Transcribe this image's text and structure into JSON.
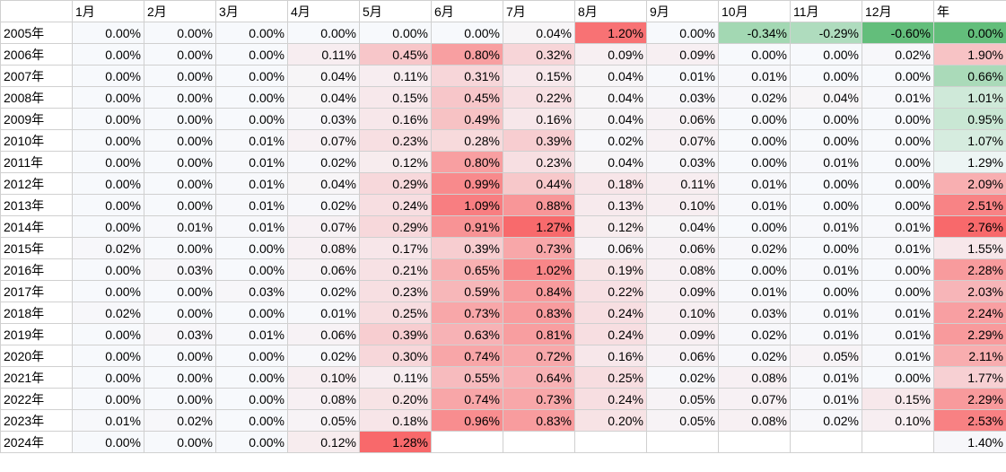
{
  "sheet": {
    "columns": [
      "1月",
      "2月",
      "3月",
      "4月",
      "5月",
      "6月",
      "7月",
      "8月",
      "9月",
      "10月",
      "11月",
      "12月",
      "年"
    ],
    "rows": [
      {
        "label": "2005年",
        "values": [
          "0.00%",
          "0.00%",
          "0.00%",
          "0.00%",
          "0.00%",
          "0.00%",
          "0.04%",
          "1.20%",
          "0.00%",
          "-0.34%",
          "-0.29%",
          "-0.60%",
          "0.00%"
        ]
      },
      {
        "label": "2006年",
        "values": [
          "0.00%",
          "0.00%",
          "0.00%",
          "0.11%",
          "0.45%",
          "0.80%",
          "0.32%",
          "0.09%",
          "0.09%",
          "0.00%",
          "0.00%",
          "0.02%",
          "1.90%"
        ]
      },
      {
        "label": "2007年",
        "values": [
          "0.00%",
          "0.00%",
          "0.00%",
          "0.04%",
          "0.11%",
          "0.31%",
          "0.15%",
          "0.04%",
          "0.01%",
          "0.01%",
          "0.00%",
          "0.00%",
          "0.66%"
        ]
      },
      {
        "label": "2008年",
        "values": [
          "0.00%",
          "0.00%",
          "0.00%",
          "0.04%",
          "0.15%",
          "0.45%",
          "0.22%",
          "0.04%",
          "0.03%",
          "0.02%",
          "0.04%",
          "0.01%",
          "1.01%"
        ]
      },
      {
        "label": "2009年",
        "values": [
          "0.00%",
          "0.00%",
          "0.00%",
          "0.03%",
          "0.16%",
          "0.49%",
          "0.16%",
          "0.04%",
          "0.06%",
          "0.00%",
          "0.00%",
          "0.00%",
          "0.95%"
        ]
      },
      {
        "label": "2010年",
        "values": [
          "0.00%",
          "0.00%",
          "0.01%",
          "0.07%",
          "0.23%",
          "0.28%",
          "0.39%",
          "0.02%",
          "0.07%",
          "0.00%",
          "0.00%",
          "0.00%",
          "1.07%"
        ]
      },
      {
        "label": "2011年",
        "values": [
          "0.00%",
          "0.00%",
          "0.01%",
          "0.02%",
          "0.12%",
          "0.80%",
          "0.23%",
          "0.04%",
          "0.03%",
          "0.00%",
          "0.01%",
          "0.00%",
          "1.29%"
        ]
      },
      {
        "label": "2012年",
        "values": [
          "0.00%",
          "0.00%",
          "0.01%",
          "0.04%",
          "0.29%",
          "0.99%",
          "0.44%",
          "0.18%",
          "0.11%",
          "0.01%",
          "0.00%",
          "0.00%",
          "2.09%"
        ]
      },
      {
        "label": "2013年",
        "values": [
          "0.00%",
          "0.00%",
          "0.01%",
          "0.02%",
          "0.24%",
          "1.09%",
          "0.88%",
          "0.13%",
          "0.10%",
          "0.01%",
          "0.00%",
          "0.00%",
          "2.51%"
        ]
      },
      {
        "label": "2014年",
        "values": [
          "0.00%",
          "0.01%",
          "0.01%",
          "0.07%",
          "0.29%",
          "0.91%",
          "1.27%",
          "0.12%",
          "0.04%",
          "0.00%",
          "0.01%",
          "0.01%",
          "2.76%"
        ]
      },
      {
        "label": "2015年",
        "values": [
          "0.02%",
          "0.00%",
          "0.00%",
          "0.08%",
          "0.17%",
          "0.39%",
          "0.73%",
          "0.06%",
          "0.06%",
          "0.02%",
          "0.00%",
          "0.01%",
          "1.55%"
        ]
      },
      {
        "label": "2016年",
        "values": [
          "0.00%",
          "0.03%",
          "0.00%",
          "0.06%",
          "0.21%",
          "0.65%",
          "1.02%",
          "0.19%",
          "0.08%",
          "0.00%",
          "0.01%",
          "0.00%",
          "2.28%"
        ]
      },
      {
        "label": "2017年",
        "values": [
          "0.00%",
          "0.00%",
          "0.03%",
          "0.02%",
          "0.23%",
          "0.59%",
          "0.84%",
          "0.22%",
          "0.09%",
          "0.01%",
          "0.00%",
          "0.00%",
          "2.03%"
        ]
      },
      {
        "label": "2018年",
        "values": [
          "0.02%",
          "0.00%",
          "0.00%",
          "0.01%",
          "0.25%",
          "0.73%",
          "0.83%",
          "0.24%",
          "0.10%",
          "0.03%",
          "0.01%",
          "0.01%",
          "2.24%"
        ]
      },
      {
        "label": "2019年",
        "values": [
          "0.00%",
          "0.03%",
          "0.01%",
          "0.06%",
          "0.39%",
          "0.63%",
          "0.81%",
          "0.24%",
          "0.09%",
          "0.02%",
          "0.01%",
          "0.01%",
          "2.29%"
        ]
      },
      {
        "label": "2020年",
        "values": [
          "0.00%",
          "0.00%",
          "0.00%",
          "0.02%",
          "0.30%",
          "0.74%",
          "0.72%",
          "0.16%",
          "0.06%",
          "0.02%",
          "0.05%",
          "0.01%",
          "2.11%"
        ]
      },
      {
        "label": "2021年",
        "values": [
          "0.00%",
          "0.00%",
          "0.00%",
          "0.10%",
          "0.11%",
          "0.55%",
          "0.64%",
          "0.25%",
          "0.02%",
          "0.08%",
          "0.01%",
          "0.00%",
          "1.77%"
        ]
      },
      {
        "label": "2022年",
        "values": [
          "0.00%",
          "0.00%",
          "0.00%",
          "0.08%",
          "0.20%",
          "0.74%",
          "0.73%",
          "0.24%",
          "0.05%",
          "0.07%",
          "0.01%",
          "0.15%",
          "2.29%"
        ]
      },
      {
        "label": "2023年",
        "values": [
          "0.01%",
          "0.02%",
          "0.00%",
          "0.05%",
          "0.18%",
          "0.96%",
          "0.83%",
          "0.20%",
          "0.05%",
          "0.08%",
          "0.02%",
          "0.10%",
          "2.53%"
        ]
      },
      {
        "label": "2024年",
        "values": [
          "0.00%",
          "0.00%",
          "0.00%",
          "0.12%",
          "1.28%",
          "",
          "",
          "",
          "",
          "",
          "",
          "",
          "1.40%"
        ]
      }
    ],
    "color_scale": {
      "neutral": "#F7F9FC",
      "positive_max": "#F8696B",
      "negative_max": "#63BE7B",
      "monthly_max": 1.28,
      "monthly_min": -0.6,
      "year_max": 2.76,
      "year_min": 0.0
    }
  }
}
